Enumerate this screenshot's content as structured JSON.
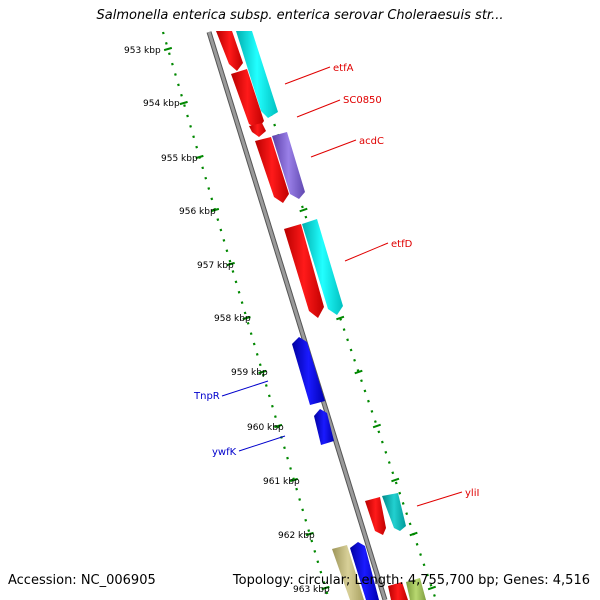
{
  "title": "Salmonella enterica subsp. enterica serovar Choleraesuis str...",
  "scale_labels": [
    "953 kbp",
    "954 kbp",
    "955 kbp",
    "956 kbp",
    "957 kbp",
    "958 kbp",
    "959 kbp",
    "960 kbp",
    "961 kbp",
    "962 kbp",
    "963 kbp"
  ],
  "genes": [
    {
      "name": "etfA",
      "color": "#e00000"
    },
    {
      "name": "SC0850",
      "color": "#e00000"
    },
    {
      "name": "acdC",
      "color": "#e00000"
    },
    {
      "name": "etfD",
      "color": "#e00000"
    },
    {
      "name": "TnpR",
      "color": "#0000cc"
    },
    {
      "name": "ywfK",
      "color": "#0000cc"
    },
    {
      "name": "yliI",
      "color": "#e00000"
    }
  ],
  "footer": {
    "accession": "Accession: NC_006905",
    "summary": "Topology: circular; Length: 4,755,700 bp; Genes: 4,516"
  },
  "colors": {
    "backbone": "#888888",
    "ticks": "#008800",
    "forward": "#ff0000",
    "reverse": "#0000ee",
    "cog_cyan": "#00e5e5",
    "cog_purple": "#7755cc",
    "cog_olive": "#b8b070"
  }
}
